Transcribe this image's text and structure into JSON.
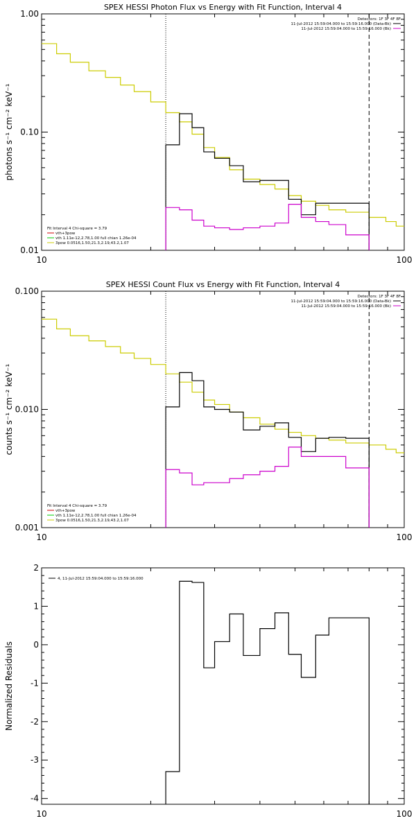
{
  "chart_data": [
    {
      "type": "line",
      "title": "SPEX HESSI Photon Flux vs Energy with Fit Function, Interval 4",
      "ylabel": "photons s⁻¹ cm⁻² keV⁻¹",
      "xlabel": "",
      "xscale": "log",
      "yscale": "log",
      "xlim": [
        10,
        100
      ],
      "ylim": [
        0.01,
        1.0
      ],
      "xticks": [
        "10",
        "100"
      ],
      "yticks": [
        {
          "value": 1.0,
          "label": "1.00"
        },
        {
          "value": 0.1,
          "label": "0.10"
        },
        {
          "value": 0.01,
          "label": "0.01"
        }
      ],
      "vlines": [
        {
          "x": 22,
          "style": "dotted"
        },
        {
          "x": 80,
          "style": "dashed"
        }
      ],
      "legend_right": [
        "Detectors: 1F 3F 4F 8F",
        "11-Jul-2012 15:59:04.000 to 15:59:16.000 (Data-Bk)",
        "11-Jul-2012 15:59:04.000 to 15:59:16.000 (Bk)"
      ],
      "legend_left": [
        "Fit Interval  4    Chi-square = 3.79",
        "vth+3pow",
        "vth 1.11e-12,2.78,1.00  full chian 1.26e-04",
        "3pow 0.0516,1.50,21.3,2.19,43.2,1.07"
      ],
      "series": [
        {
          "name": "Data-Bk",
          "color": "#000000",
          "edges": [
            22,
            24,
            26,
            28,
            30,
            33,
            36,
            40,
            44,
            48,
            52,
            57,
            62,
            69,
            80
          ],
          "values": [
            0.078,
            0.143,
            0.109,
            0.068,
            0.06,
            0.052,
            0.038,
            0.039,
            0.039,
            0.027,
            0.02,
            0.025,
            0.025,
            0.025
          ]
        },
        {
          "name": "Bk",
          "color": "#cc00cc",
          "edges": [
            22,
            24,
            26,
            28,
            30,
            33,
            36,
            40,
            44,
            48,
            52,
            57,
            62,
            69,
            80
          ],
          "values": [
            0.023,
            0.022,
            0.018,
            0.016,
            0.0155,
            0.015,
            0.0155,
            0.016,
            0.017,
            0.0245,
            0.019,
            0.0175,
            0.0165,
            0.0135
          ]
        },
        {
          "name": "vth+3pow",
          "color": "#cccc00",
          "edges": [
            10,
            11,
            12,
            13.5,
            15,
            16.5,
            18,
            20,
            22,
            24,
            26,
            28,
            30,
            33,
            36,
            40,
            44,
            48,
            52,
            57,
            62,
            69,
            80,
            89,
            95,
            100
          ],
          "values": [
            0.56,
            0.46,
            0.39,
            0.33,
            0.29,
            0.25,
            0.22,
            0.18,
            0.146,
            0.122,
            0.096,
            0.074,
            0.061,
            0.048,
            0.04,
            0.036,
            0.033,
            0.029,
            0.026,
            0.024,
            0.022,
            0.021,
            0.019,
            0.0175,
            0.016
          ]
        }
      ]
    },
    {
      "type": "line",
      "title": "SPEX HESSI Count Flux vs Energy with Fit Function, Interval 4",
      "ylabel": "counts s⁻¹ cm⁻² keV⁻¹",
      "xlabel": "",
      "xscale": "log",
      "yscale": "log",
      "xlim": [
        10,
        100
      ],
      "ylim": [
        0.001,
        0.1
      ],
      "xticks": [
        "10",
        "100"
      ],
      "yticks": [
        {
          "value": 0.1,
          "label": "0.100"
        },
        {
          "value": 0.01,
          "label": "0.010"
        },
        {
          "value": 0.001,
          "label": "0.001"
        }
      ],
      "vlines": [
        {
          "x": 22,
          "style": "dotted"
        },
        {
          "x": 80,
          "style": "dashed"
        }
      ],
      "legend_right": [
        "Detectors: 1F 3F 4F 8F",
        "11-Jul-2012 15:59:04.000 to 15:59:16.000 (Data-Bk)",
        "11-Jul-2012 15:59:04.000 to 15:59:16.000 (Bk)"
      ],
      "legend_left": [
        "Fit Interval  4    Chi-square = 3.79",
        "vth+3pow",
        "vth 1.11e-12,2.78,1.00  full chian 1.26e-04",
        "3pow 0.0516,1.50,21.3,2.19,43.2,1.07"
      ],
      "series": [
        {
          "name": "Data-Bk",
          "color": "#000000",
          "edges": [
            22,
            24,
            26,
            28,
            30,
            33,
            36,
            40,
            44,
            48,
            52,
            57,
            62,
            69,
            80
          ],
          "values": [
            0.0105,
            0.0205,
            0.0175,
            0.0105,
            0.01,
            0.0095,
            0.0067,
            0.0072,
            0.0077,
            0.0058,
            0.0044,
            0.0057,
            0.0058,
            0.0057
          ]
        },
        {
          "name": "Bk",
          "color": "#cc00cc",
          "edges": [
            22,
            24,
            26,
            28,
            30,
            33,
            36,
            40,
            44,
            48,
            52,
            57,
            62,
            69,
            80
          ],
          "values": [
            0.0031,
            0.0029,
            0.0023,
            0.0024,
            0.0024,
            0.0026,
            0.0028,
            0.003,
            0.0033,
            0.0048,
            0.004,
            0.004,
            0.004,
            0.0032
          ]
        },
        {
          "name": "vth+3pow",
          "color": "#cccc00",
          "edges": [
            10,
            11,
            12,
            13.5,
            15,
            16.5,
            18,
            20,
            22,
            24,
            26,
            28,
            30,
            33,
            36,
            40,
            44,
            48,
            52,
            57,
            62,
            69,
            80,
            89,
            95,
            100
          ],
          "values": [
            0.058,
            0.048,
            0.042,
            0.038,
            0.034,
            0.03,
            0.027,
            0.024,
            0.02,
            0.017,
            0.014,
            0.012,
            0.011,
            0.0095,
            0.0085,
            0.0075,
            0.0068,
            0.0064,
            0.006,
            0.0057,
            0.0055,
            0.0052,
            0.005,
            0.0046,
            0.0043
          ]
        }
      ]
    },
    {
      "type": "line",
      "title": "",
      "ylabel": "Normalized Residuals",
      "xlabel": "",
      "xscale": "log",
      "yscale": "linear",
      "xlim": [
        10,
        100
      ],
      "ylim": [
        -4.15,
        2.0
      ],
      "xticks": [
        "10",
        "100"
      ],
      "yticks": [
        {
          "value": 2,
          "label": "2"
        },
        {
          "value": 1,
          "label": "1"
        },
        {
          "value": 0,
          "label": "0"
        },
        {
          "value": -1,
          "label": "-1"
        },
        {
          "value": -2,
          "label": "-2"
        },
        {
          "value": -3,
          "label": "-3"
        },
        {
          "value": -4,
          "label": "-4"
        }
      ],
      "legend_left": [
        "4, 11-Jul-2012 15:59:04.000 to 15:59:16.000"
      ],
      "series": [
        {
          "name": "4, 11-Jul-2012 15:59:04.000 to 15:59:16.000",
          "color": "#000000",
          "edges": [
            22,
            24,
            26,
            28,
            30,
            33,
            36,
            40,
            44,
            48,
            52,
            57,
            62,
            69,
            80
          ],
          "values": [
            -3.3,
            1.65,
            1.62,
            -0.6,
            0.08,
            0.8,
            -0.28,
            0.42,
            0.83,
            -0.25,
            -0.85,
            0.25,
            0.7,
            0.7
          ]
        }
      ]
    }
  ]
}
